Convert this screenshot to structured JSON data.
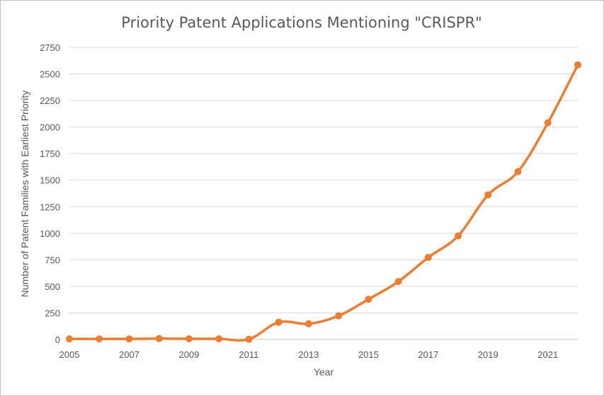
{
  "chart_data": {
    "type": "line",
    "title": "Priority Patent Applications Mentioning \"CRISPR\"",
    "xlabel": "Year",
    "ylabel": "Number of Patent Families with Earliest Priority",
    "x": [
      2005,
      2006,
      2007,
      2008,
      2009,
      2010,
      2011,
      2012,
      2013,
      2014,
      2015,
      2016,
      2017,
      2018,
      2019,
      2020,
      2021,
      2022
    ],
    "series": [
      {
        "values": [
          5,
          5,
          5,
          8,
          6,
          6,
          2,
          162,
          147,
          222,
          378,
          545,
          772,
          975,
          1362,
          1580,
          2040,
          2585
        ]
      }
    ],
    "ylim": [
      0,
      2750
    ],
    "yticks": [
      0,
      250,
      500,
      750,
      1000,
      1250,
      1500,
      1750,
      2000,
      2250,
      2500,
      2750
    ],
    "xticks": [
      2005,
      2007,
      2009,
      2011,
      2013,
      2015,
      2017,
      2019,
      2021
    ],
    "grid": true,
    "legend": "none",
    "color": "#ED7D31"
  }
}
